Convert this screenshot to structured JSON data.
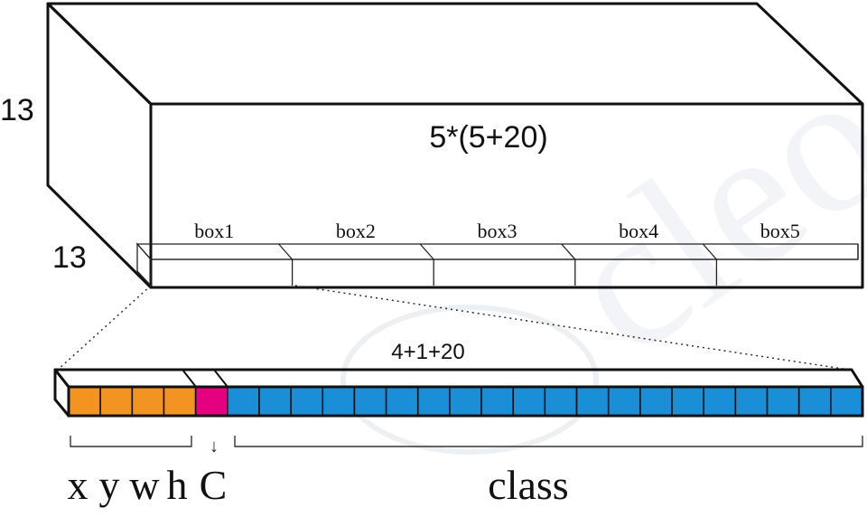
{
  "tensor": {
    "height_label": "13",
    "width_label": "13",
    "depth_label": "5*(5+20)",
    "boxes": [
      "box1",
      "box2",
      "box3",
      "box4",
      "box5"
    ]
  },
  "vector": {
    "length_label": "4+1+20",
    "coord_cell_count": 4,
    "conf_cell_count": 1,
    "class_cell_count": 20,
    "coord_labels": [
      "x",
      "y",
      "w",
      "h"
    ],
    "conf_label": "C",
    "conf_arrow": "↓",
    "class_label": "class"
  },
  "colors": {
    "coords": "#f39322",
    "confidence": "#e4007f",
    "classes": "#1a8fd8",
    "outline": "#111111",
    "watermark": "#cfd6dd"
  },
  "watermark": {
    "text": "cleo"
  }
}
